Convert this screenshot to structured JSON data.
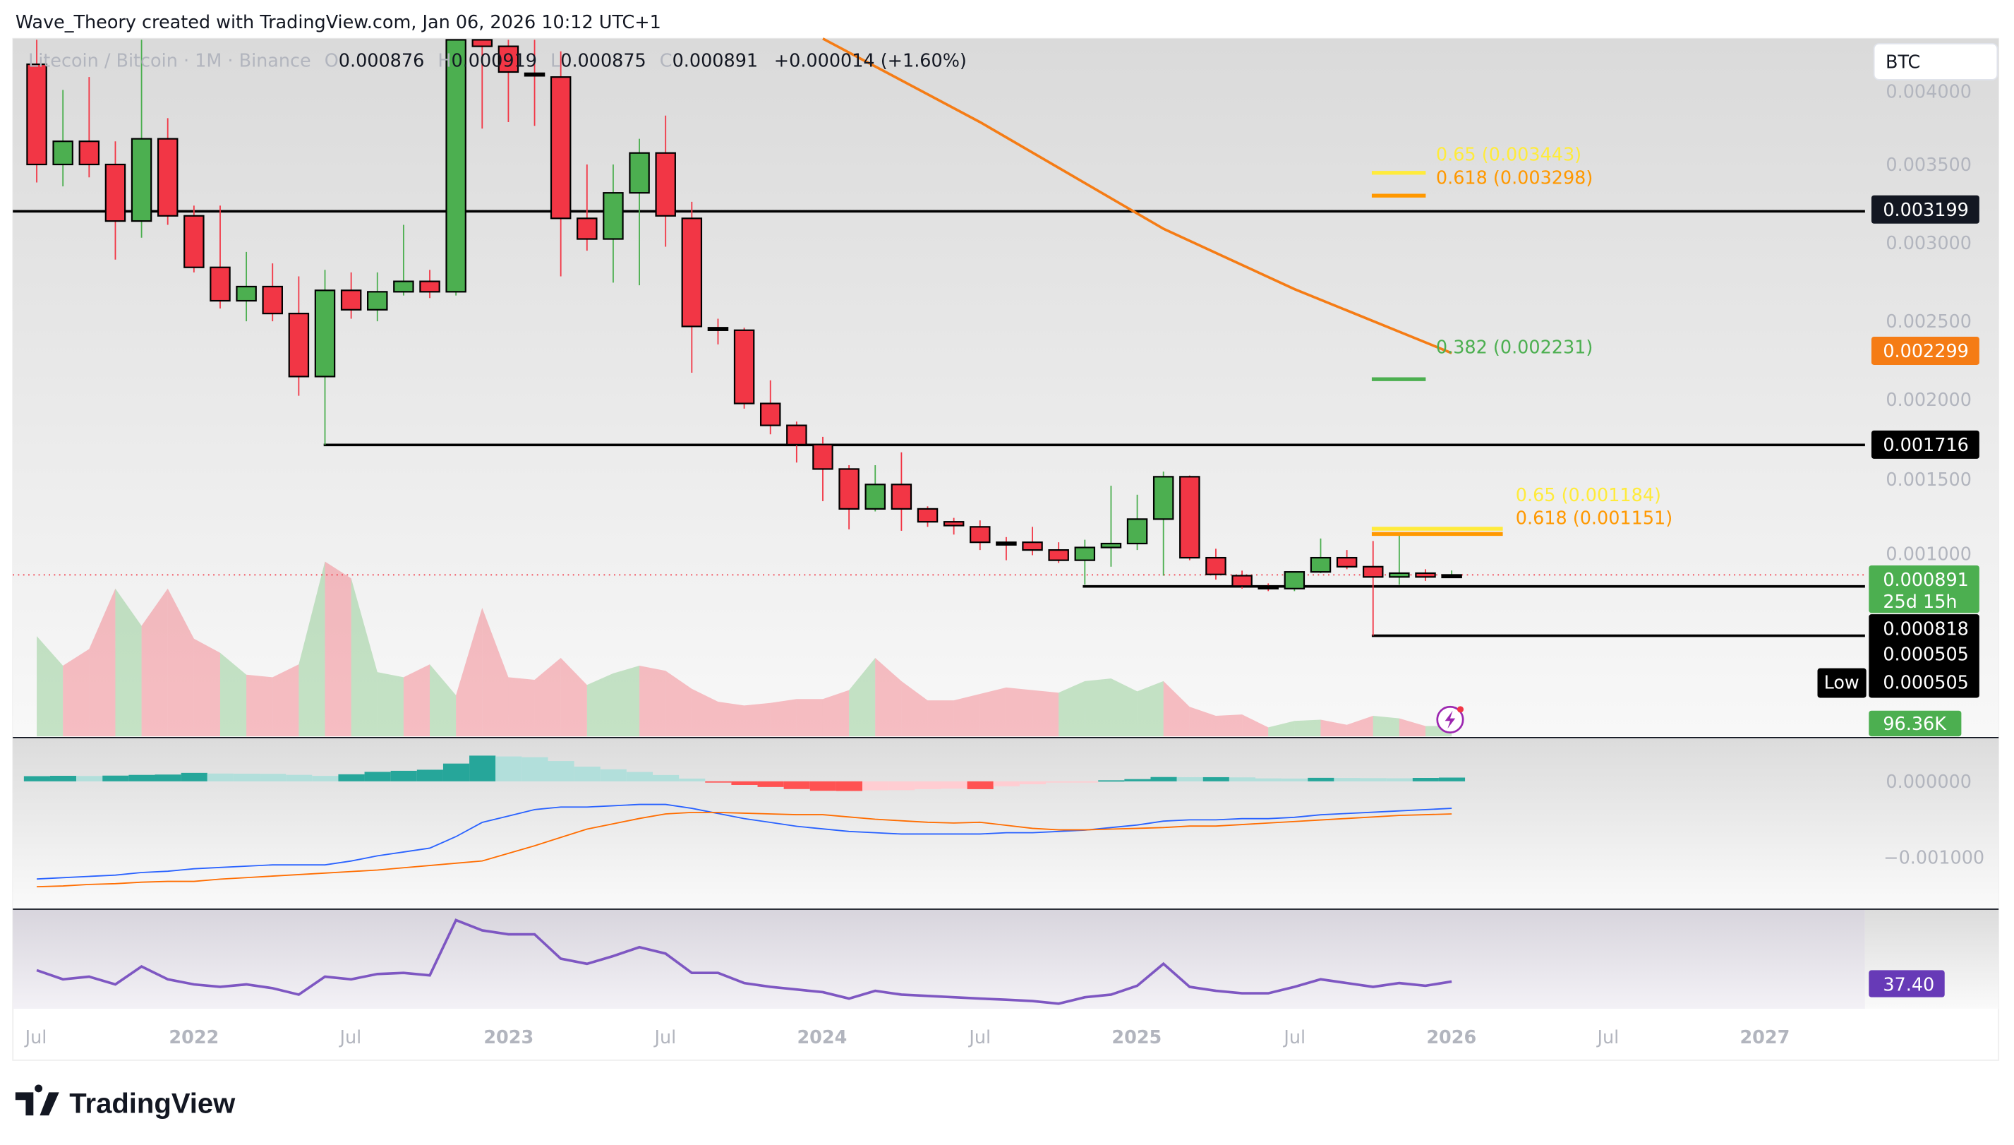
{
  "header": {
    "attribution": "Wave_Theory created with TradingView.com, Jan 06, 2026 10:12 UTC+1"
  },
  "legend": {
    "symbol": "Litecoin / Bitcoin · 1M · Binance",
    "o_label": "O",
    "open": "0.000876",
    "h_label": "H",
    "high": "0.000919",
    "l_label": "L",
    "low": "0.000875",
    "c_label": "C",
    "close": "0.000891",
    "change": "+0.000014 (+1.60%)"
  },
  "currency_button": "BTC",
  "price_axis": [
    "0.004000",
    "0.003500",
    "0.003000",
    "0.002500",
    "0.002000",
    "0.001500",
    "0.001000"
  ],
  "price_tags": {
    "resistance_1": "0.003199",
    "ema": "0.002299",
    "support_1": "0.001716",
    "last": "0.000891",
    "countdown": "25d 15h",
    "support_2": "0.000818",
    "support_3": "0.000505",
    "low_label": "Low",
    "low_value": "0.000505",
    "volume": "96.36K"
  },
  "macd_axis": [
    "0.000000",
    "−0.001000"
  ],
  "rsi_tag": "37.40",
  "time_axis": [
    "Jul",
    "2022",
    "Jul",
    "2023",
    "Jul",
    "2024",
    "Jul",
    "2025",
    "Jul",
    "2026",
    "Jul",
    "2027"
  ],
  "fib_labels": {
    "upper_065": "0.65 (0.003443)",
    "upper_0618": "0.618 (0.003298)",
    "upper_0382": "0.382 (0.002231)",
    "lower_065": "0.65 (0.001184)",
    "lower_0618": "0.618 (0.001151)"
  },
  "brand": "TradingView",
  "colors": {
    "up": "#4caf50",
    "down": "#f23645",
    "ema": "#f57c15",
    "macd": "#2962ff",
    "signal": "#ff6d00",
    "rsi": "#7e57c2",
    "fib_065": "#ffeb3b",
    "fib_0618": "#ff9800",
    "fib_0382": "#4caf50"
  },
  "chart_data": {
    "type": "candlestick",
    "symbol": "LTC/BTC",
    "interval": "1M",
    "start_month": "2021-07",
    "ylim": [
      0.0004,
      0.0043
    ],
    "ohlc": [
      [
        0.004132,
        0.004295,
        0.003382,
        0.003496
      ],
      [
        0.003496,
        0.003969,
        0.003357,
        0.003643
      ],
      [
        0.003643,
        0.004051,
        0.003414,
        0.003496
      ],
      [
        0.003496,
        0.003643,
        0.002892,
        0.003137
      ],
      [
        0.003137,
        0.004295,
        0.003031,
        0.003659
      ],
      [
        0.003659,
        0.00379,
        0.003113,
        0.00317
      ],
      [
        0.00317,
        0.003235,
        0.002811,
        0.002843
      ],
      [
        0.002843,
        0.003235,
        0.002582,
        0.002631
      ],
      [
        0.002631,
        0.002941,
        0.002501,
        0.002721
      ],
      [
        0.002721,
        0.002868,
        0.002501,
        0.00255
      ],
      [
        0.00255,
        0.002786,
        0.002028,
        0.00215
      ],
      [
        0.00215,
        0.002827,
        0.001716,
        0.002697
      ],
      [
        0.002697,
        0.002811,
        0.002517,
        0.002574
      ],
      [
        0.002574,
        0.002811,
        0.002501,
        0.002688
      ],
      [
        0.002688,
        0.003113,
        0.002664,
        0.002754
      ],
      [
        0.002754,
        0.002827,
        0.002648,
        0.002688
      ],
      [
        0.002688,
        0.004377,
        0.002664,
        0.004295
      ],
      [
        0.004295,
        0.004377,
        0.003724,
        0.004246
      ],
      [
        0.004246,
        0.004377,
        0.003765,
        0.004083
      ],
      [
        0.004075,
        0.004295,
        0.003741,
        0.004067
      ],
      [
        0.004051,
        0.004214,
        0.002786,
        0.003154
      ],
      [
        0.003154,
        0.003496,
        0.002949,
        0.003023
      ],
      [
        0.003023,
        0.003496,
        0.002746,
        0.003316
      ],
      [
        0.003316,
        0.003659,
        0.002729,
        0.003569
      ],
      [
        0.003569,
        0.003806,
        0.002974,
        0.00317
      ],
      [
        0.003154,
        0.003259,
        0.002174,
        0.002468
      ],
      [
        0.00246,
        0.002517,
        0.002354,
        0.002452
      ],
      [
        0.002444,
        0.00246,
        0.001946,
        0.001979
      ],
      [
        0.001979,
        0.002126,
        0.001783,
        0.00184
      ],
      [
        0.00184,
        0.001864,
        0.001604,
        0.001718
      ],
      [
        0.001718,
        0.001767,
        0.001359,
        0.001563
      ],
      [
        0.001563,
        0.001587,
        0.00118,
        0.00131
      ],
      [
        0.00131,
        0.001587,
        0.001294,
        0.001465
      ],
      [
        0.001465,
        0.001669,
        0.001171,
        0.00131
      ],
      [
        0.00131,
        0.001326,
        0.001196,
        0.001228
      ],
      [
        0.001228,
        0.001253,
        0.001147,
        0.001204
      ],
      [
        0.001196,
        0.001237,
        0.001049,
        0.001098
      ],
      [
        0.001098,
        0.001131,
        0.000984,
        0.001082
      ],
      [
        0.001098,
        0.001196,
        0.001016,
        0.001049
      ],
      [
        0.001049,
        0.001098,
        0.000967,
        0.000984
      ],
      [
        0.000984,
        0.001114,
        0.000829,
        0.001065
      ],
      [
        0.001065,
        0.001457,
        0.000943,
        0.00109
      ],
      [
        0.00109,
        0.0014,
        0.001049,
        0.001245
      ],
      [
        0.001245,
        0.001547,
        0.000886,
        0.001514
      ],
      [
        0.001514,
        0.001522,
        0.000984,
        0.001
      ],
      [
        0.001,
        0.001057,
        0.000861,
        0.000894
      ],
      [
        0.000886,
        0.000918,
        0.000804,
        0.00082
      ],
      [
        0.00082,
        0.000837,
        0.000788,
        0.000804
      ],
      [
        0.000804,
        0.00091,
        0.000788,
        0.00091
      ],
      [
        0.00091,
        0.001122,
        0.000902,
        0.001
      ],
      [
        0.001,
        0.001049,
        0.000927,
        0.000943
      ],
      [
        0.000943,
        0.001106,
        0.000505,
        0.000878
      ],
      [
        0.000878,
        0.001147,
        0.000829,
        0.000902
      ],
      [
        0.000902,
        0.000927,
        0.000853,
        0.000878
      ],
      [
        0.000876,
        0.000919,
        0.000875,
        0.000891
      ]
    ],
    "volume_k": [
      936,
      660,
      816,
      1380,
      1032,
      1380,
      912,
      780,
      576,
      552,
      672,
      1632,
      1476,
      600,
      552,
      672,
      384,
      1200,
      552,
      528,
      732,
      480,
      588,
      660,
      612,
      444,
      324,
      288,
      312,
      348,
      348,
      432,
      732,
      516,
      336,
      336,
      396,
      456,
      432,
      408,
      516,
      540,
      420,
      516,
      276,
      192,
      204,
      84,
      144,
      156,
      108,
      192,
      168,
      96,
      96.36
    ],
    "ema": [
      [
        30,
        0.004295
      ],
      [
        36,
        0.003765
      ],
      [
        43,
        0.003088
      ],
      [
        48,
        0.002705
      ],
      [
        54,
        0.002299
      ]
    ],
    "horizontal_levels": [
      0.003199,
      0.001716,
      0.000818,
      0.000505
    ],
    "fib_upper": [
      {
        "ratio": 0.65,
        "price": 0.003443
      },
      {
        "ratio": 0.618,
        "price": 0.003298
      },
      {
        "ratio": 0.382,
        "price": 0.002231
      }
    ],
    "fib_lower": [
      {
        "ratio": 0.65,
        "price": 0.001184
      },
      {
        "ratio": 0.618,
        "price": 0.001151
      }
    ],
    "macd": [
      -0.001288,
      -0.001271,
      -0.001254,
      -0.001237,
      -0.001203,
      -0.001186,
      -0.001153,
      -0.001136,
      -0.001119,
      -0.001102,
      -0.001102,
      -0.001102,
      -0.001051,
      -0.000983,
      -0.000932,
      -0.000881,
      -0.000729,
      -0.000542,
      -0.000458,
      -0.000373,
      -0.000339,
      -0.000339,
      -0.000322,
      -0.000305,
      -0.000305,
      -0.000356,
      -0.000424,
      -0.000492,
      -0.000542,
      -0.000593,
      -0.000627,
      -0.000661,
      -0.000678,
      -0.000695,
      -0.000695,
      -0.000695,
      -0.000695,
      -0.000678,
      -0.000678,
      -0.000661,
      -0.000644,
      -0.00061,
      -0.000576,
      -0.000525,
      -0.000508,
      -0.000508,
      -0.000492,
      -0.000492,
      -0.000475,
      -0.000441,
      -0.000424,
      -0.000407,
      -0.00039,
      -0.000373,
      -0.000356
    ],
    "signal": [
      -0.00139,
      -0.00138,
      -0.00136,
      -0.00135,
      -0.00133,
      -0.00132,
      -0.00132,
      -0.00129,
      -0.00127,
      -0.00125,
      -0.00123,
      -0.00121,
      -0.00119,
      -0.00117,
      -0.00114,
      -0.00111,
      -0.00108,
      -0.00105,
      -0.00095,
      -0.00085,
      -0.00074,
      -0.00063,
      -0.00056,
      -0.00049,
      -0.00043,
      -0.00041,
      -0.00041,
      -0.00042,
      -0.00043,
      -0.00044,
      -0.00044,
      -0.00047,
      -0.0005,
      -0.00052,
      -0.00054,
      -0.00055,
      -0.00054,
      -0.00058,
      -0.00062,
      -0.00064,
      -0.00064,
      -0.00063,
      -0.00062,
      -0.00061,
      -0.00059,
      -0.00059,
      -0.00057,
      -0.00055,
      -0.00053,
      -0.00051,
      -0.00049,
      -0.00047,
      -0.00045,
      -0.00044,
      -0.00043
    ],
    "rsi": [
      43.4,
      38.6,
      40.0,
      35.9,
      45.4,
      38.6,
      35.9,
      34.6,
      35.9,
      33.9,
      30.5,
      40.0,
      38.6,
      41.4,
      42.0,
      40.7,
      69.9,
      64.5,
      62.4,
      62.4,
      49.5,
      46.8,
      50.9,
      55.6,
      52.2,
      42.0,
      42.0,
      36.6,
      34.6,
      33.2,
      31.8,
      28.4,
      32.5,
      30.5,
      29.8,
      29.1,
      28.4,
      27.8,
      27.1,
      25.7,
      29.1,
      30.5,
      35.2,
      46.8,
      34.6,
      32.5,
      31.2,
      31.2,
      34.6,
      38.6,
      36.6,
      34.6,
      36.6,
      35.2,
      37.4
    ]
  }
}
